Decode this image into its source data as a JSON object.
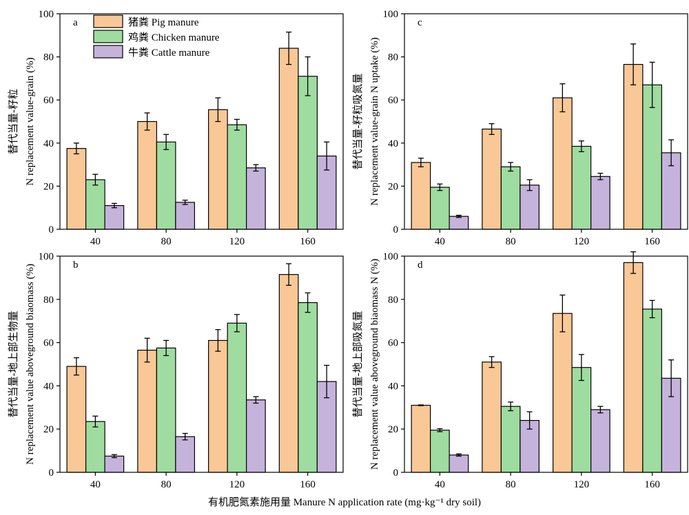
{
  "figure": {
    "xlabel": "有机肥氮素施用量 Manure N application rate (mg·kg⁻¹ dry soil)"
  },
  "legend": {
    "items": [
      {
        "label": "猪粪 Pig manure",
        "color": "#f9c896"
      },
      {
        "label": "鸡粪 Chicken manure",
        "color": "#9fdca0"
      },
      {
        "label": "牛粪 Cattle manure",
        "color": "#c5b3dc"
      }
    ]
  },
  "chart_data": [
    {
      "panel": "a",
      "type": "bar",
      "ylabel_cn": "替代当量-籽粒",
      "ylabel_en": "N replacement value-grain (%)",
      "categories": [
        "40",
        "80",
        "120",
        "160"
      ],
      "ylim": [
        0,
        100
      ],
      "yticks": [
        0,
        20,
        40,
        60,
        80,
        100
      ],
      "series": [
        {
          "name": "猪粪 Pig manure",
          "values": [
            37.5,
            50,
            55.5,
            84
          ],
          "errors": [
            2.5,
            4,
            5.5,
            7.5
          ]
        },
        {
          "name": "鸡粪 Chicken manure",
          "values": [
            23,
            40.5,
            48.5,
            71
          ],
          "errors": [
            2.5,
            3.5,
            2.5,
            9
          ]
        },
        {
          "name": "牛粪 Cattle manure",
          "values": [
            11,
            12.5,
            28.5,
            34
          ],
          "errors": [
            1,
            1,
            1.5,
            6.5
          ]
        }
      ]
    },
    {
      "panel": "b",
      "type": "bar",
      "ylabel_cn": "替代当量-地上部生物量",
      "ylabel_en": "N replacement value aboveground biaomass (%)",
      "categories": [
        "40",
        "80",
        "120",
        "160"
      ],
      "ylim": [
        0,
        100
      ],
      "yticks": [
        0,
        20,
        40,
        60,
        80,
        100
      ],
      "series": [
        {
          "name": "猪粪 Pig manure",
          "values": [
            49,
            56.5,
            61,
            91.5
          ],
          "errors": [
            4,
            5.5,
            5,
            5
          ]
        },
        {
          "name": "鸡粪 Chicken manure",
          "values": [
            23.5,
            57.5,
            69,
            78.5
          ],
          "errors": [
            2.5,
            3.5,
            4,
            4.5
          ]
        },
        {
          "name": "牛粪 Cattle manure",
          "values": [
            7.5,
            16.5,
            33.5,
            42
          ],
          "errors": [
            0.7,
            1.5,
            1.5,
            7.5
          ]
        }
      ]
    },
    {
      "panel": "c",
      "type": "bar",
      "ylabel_cn": "替代当量-籽粒吸氮量",
      "ylabel_en": "N replacement value-grain N uptake (%)",
      "categories": [
        "40",
        "80",
        "120",
        "160"
      ],
      "ylim": [
        0,
        100
      ],
      "yticks": [
        0,
        20,
        40,
        60,
        80,
        100
      ],
      "series": [
        {
          "name": "猪粪 Pig manure",
          "values": [
            31,
            46.5,
            61,
            76.5
          ],
          "errors": [
            2,
            2.5,
            6.5,
            9.5
          ]
        },
        {
          "name": "鸡粪 Chicken manure",
          "values": [
            19.5,
            29,
            38.5,
            67
          ],
          "errors": [
            1.5,
            2,
            2.5,
            10.5
          ]
        },
        {
          "name": "牛粪 Cattle manure",
          "values": [
            6,
            20.5,
            24.5,
            35.5
          ],
          "errors": [
            0.5,
            2.5,
            1.5,
            6
          ]
        }
      ]
    },
    {
      "panel": "d",
      "type": "bar",
      "ylabel_cn": "替代当量-地上部吸氮量",
      "ylabel_en": "N replacement value aboveground biaomass N (%)",
      "categories": [
        "40",
        "80",
        "120",
        "160"
      ],
      "ylim": [
        0,
        100
      ],
      "yticks": [
        0,
        20,
        40,
        60,
        80,
        100
      ],
      "series": [
        {
          "name": "猪粪 Pig manure",
          "values": [
            31,
            51,
            73.5,
            97
          ],
          "errors": [
            0.2,
            2.5,
            8.5,
            5
          ]
        },
        {
          "name": "鸡粪 Chicken manure",
          "values": [
            19.5,
            30.5,
            48.5,
            75.5
          ],
          "errors": [
            0.7,
            2,
            6,
            4
          ]
        },
        {
          "name": "牛粪 Cattle manure",
          "values": [
            8,
            24,
            29,
            43.5
          ],
          "errors": [
            0.5,
            4,
            1.5,
            8.5
          ]
        }
      ]
    }
  ]
}
